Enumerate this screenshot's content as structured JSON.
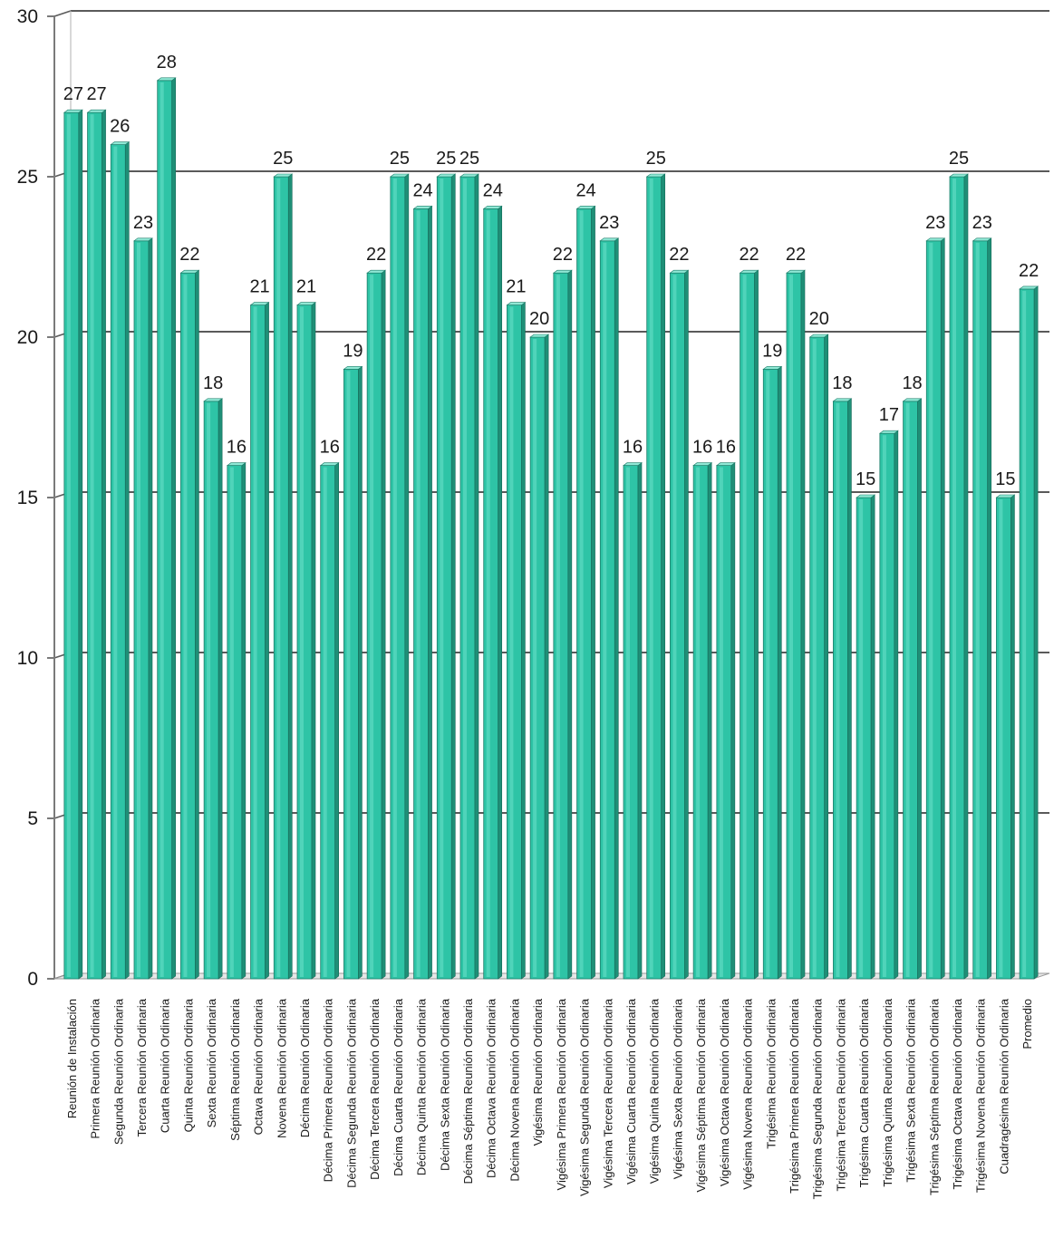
{
  "colors": {
    "bar_front": "#2ec4a6",
    "bar_side": "#1f8f77",
    "bar_top": "#8fe8d5",
    "grid": "#5a5a5a",
    "wall": "#7a7a7a"
  },
  "chart_data": {
    "type": "bar",
    "title": "",
    "xlabel": "",
    "ylabel": "",
    "ylim": [
      0,
      30
    ],
    "yticks": [
      "0",
      "5",
      "10",
      "15",
      "20",
      "25",
      "30"
    ],
    "grid": true,
    "legend": "none",
    "categories": [
      "Reunión de Instalación",
      "Primera Reunión Ordinaria",
      "Segunda Reunión Ordinaria",
      "Tercera Reunión Ordinaria",
      "Cuarta Reunión Ordinaria",
      "Quinta Reunión Ordinaria",
      "Sexta Reunión Ordinaria",
      "Séptima Reunión Ordinaria",
      "Octava Reunión Ordinaria",
      "Novena Reunión Ordinaria",
      "Décima Reunión Ordinaria",
      "Décima Primera Reunión Ordinaria",
      "Décima Segunda Reunión Ordinaria",
      "Décima Tercera Reunión Ordinaria",
      "Décima Cuarta Reunión Ordinaria",
      "Décima Quinta Reunión Ordinaria",
      "Décima Sexta Reunión Ordinaria",
      "Décima Séptima Reunión Ordinaria",
      "Décima Octava Reunión Ordinaria",
      "Décima Novena Reunión Ordinaria",
      "Vigésima Reunión Ordinaria",
      "Vigésima Primera Reunión Ordinaria",
      "Vigésima Segunda Reunión Ordinaria",
      "Vigésima Tercera Reunión Ordinaria",
      "Vigésima Cuarta Reunión Ordinaria",
      "Vigésima Quinta Reunión Ordinaria",
      "Vigésima Sexta Reunión Ordinaria",
      "Vigésima Séptima Reunión Ordinaria",
      "Vigésima Octava Reunión Ordinaria",
      "Vigésima Novena Reunión Ordinaria",
      "Trigésima Reunión Ordinaria",
      "Trigésima Primera Reunión Ordinaria",
      "Trigésima Segunda Reunión Ordinaria",
      "Trigésima Tercera Reunión Ordinaria",
      "Trigésima Cuarta Reunión Ordinaria",
      "Trigésima Quinta Reunión Ordinaria",
      "Trigésima Sexta Reunión Ordinaria",
      "Trigésima Séptima Reunión Ordinaria",
      "Trigésima Octava Reunión Ordinaria",
      "Trigésima Novena Reunión Ordinaria",
      "Cuadragésima Reunión Ordinaria",
      "Promedio"
    ],
    "values": [
      27,
      27,
      26,
      23,
      28,
      22,
      18,
      16,
      21,
      25,
      21,
      16,
      19,
      22,
      25,
      24,
      25,
      25,
      24,
      21,
      20,
      22,
      24,
      23,
      16,
      25,
      22,
      16,
      16,
      22,
      19,
      22,
      20,
      18,
      15,
      17,
      18,
      23,
      25,
      23,
      15,
      21.5
    ],
    "data_labels": [
      "27",
      "27",
      "26",
      "23",
      "28",
      "22",
      "18",
      "16",
      "21",
      "25",
      "21",
      "16",
      "19",
      "22",
      "25",
      "24",
      "25",
      "25",
      "24",
      "21",
      "20",
      "22",
      "24",
      "23",
      "16",
      "25",
      "22",
      "16",
      "16",
      "22",
      "19",
      "22",
      "20",
      "18",
      "15",
      "17",
      "18",
      "23",
      "25",
      "23",
      "15",
      "22"
    ]
  }
}
